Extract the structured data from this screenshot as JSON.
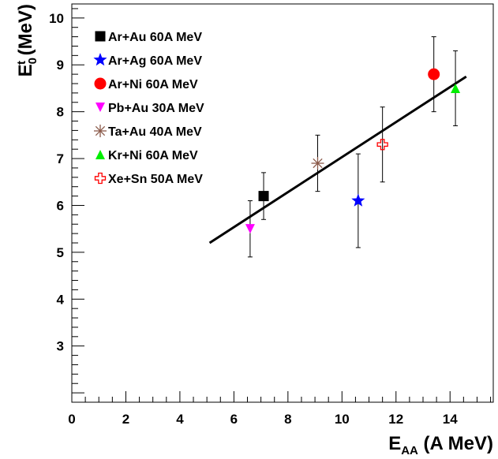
{
  "chart_data": {
    "type": "scatter",
    "xlim": [
      0,
      15.6
    ],
    "ylim": [
      1.8,
      10.3
    ],
    "x_ticks": [
      0,
      2,
      4,
      6,
      8,
      10,
      12,
      14
    ],
    "y_ticks": [
      3,
      4,
      5,
      6,
      7,
      8,
      9,
      10
    ],
    "xlabel": {
      "main": "E",
      "sub": "AA",
      "rest": " (A MeV)"
    },
    "ylabel": {
      "main": "E",
      "sup": "t",
      "sub": "0",
      "rest": " (MeV)"
    },
    "grid": false,
    "legend_position": "top-left",
    "series": [
      {
        "name": "Ar+Au 60A MeV",
        "marker": "square",
        "color": "#000000",
        "x": 7.1,
        "y": 6.2,
        "err_low": 0.5,
        "err_high": 0.5
      },
      {
        "name": "Ar+Ag 60A MeV",
        "marker": "star",
        "color": "#0000ff",
        "x": 10.6,
        "y": 6.1,
        "err_low": 1.0,
        "err_high": 1.0
      },
      {
        "name": "Ar+Ni  60A MeV",
        "marker": "circle",
        "color": "#ff0000",
        "x": 13.4,
        "y": 8.8,
        "err_low": 0.8,
        "err_high": 0.8
      },
      {
        "name": "Pb+Au 30A MeV",
        "marker": "triangle-down",
        "color": "#ff00ff",
        "x": 6.6,
        "y": 5.5,
        "err_low": 0.6,
        "err_high": 0.6
      },
      {
        "name": "Ta+Au 40A MeV",
        "marker": "asterisk",
        "color": "#8b5a4a",
        "x": 9.1,
        "y": 6.9,
        "err_low": 0.6,
        "err_high": 0.6
      },
      {
        "name": "Kr+Ni  60A MeV",
        "marker": "triangle-up",
        "color": "#00ee00",
        "x": 14.2,
        "y": 8.5,
        "err_low": 0.8,
        "err_high": 0.8
      },
      {
        "name": "Xe+Sn 50A MeV",
        "marker": "open-cross",
        "color": "#ff0000",
        "x": 11.5,
        "y": 7.3,
        "err_low": 0.8,
        "err_high": 0.8
      }
    ],
    "fit_line": {
      "x": [
        5.1,
        14.6
      ],
      "y": [
        5.2,
        8.75
      ],
      "color": "#000000"
    }
  }
}
